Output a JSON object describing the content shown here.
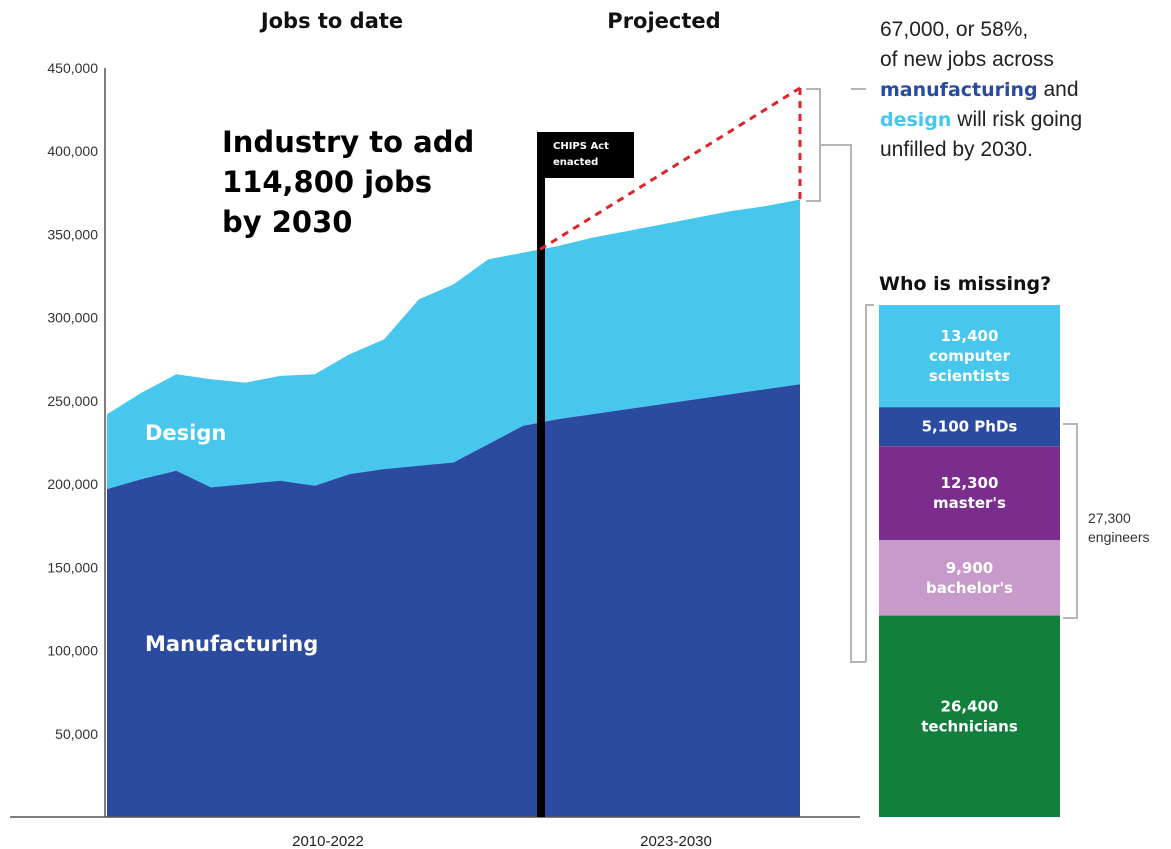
{
  "headers": {
    "left": "Jobs to date",
    "right": "Projected"
  },
  "headline": [
    "Industry to add",
    "114,800 jobs",
    "by 2030"
  ],
  "chips_label": [
    "CHIPS Act",
    "enacted"
  ],
  "periods": [
    "2010-2022",
    "2023-2030"
  ],
  "note": {
    "line1": "67,000, or 58%,",
    "line2": "of new jobs across",
    "line3_bold": "manufacturing",
    "line3_rest": " and",
    "line4_bold": "design",
    "line4_rest": " will risk going",
    "line5": "unfilled by 2030."
  },
  "who_title": "Who is missing?",
  "engineers_note": [
    "27,300",
    "engineers"
  ],
  "colors": {
    "manufacturing": "#2a4b9f",
    "design": "#47c7ee",
    "dashed": "#e0232b",
    "bracket": "#b5b5b5",
    "axis": "#555555"
  },
  "chart_data": {
    "type": "area",
    "stacked": true,
    "ylim": [
      0,
      450000
    ],
    "yticks": [
      "50,000",
      "100,000",
      "150,000",
      "200,000",
      "250,000",
      "300,000",
      "350,000",
      "400,000",
      "450,000"
    ],
    "ytick_values": [
      50000,
      100000,
      150000,
      200000,
      250000,
      300000,
      350000,
      400000,
      450000
    ],
    "x": [
      2010,
      2011,
      2012,
      2013,
      2014,
      2015,
      2016,
      2017,
      2018,
      2019,
      2020,
      2021,
      2022,
      2023,
      2024,
      2025,
      2026,
      2027,
      2028,
      2029,
      2030
    ],
    "series": [
      {
        "name": "Manufacturing",
        "color": "#2a4b9f",
        "values": [
          197000,
          203000,
          208000,
          198000,
          200000,
          202000,
          199000,
          206000,
          209000,
          211000,
          213000,
          224000,
          235000,
          239000,
          242000,
          245000,
          248000,
          251000,
          254000,
          257000,
          260000
        ]
      },
      {
        "name": "Design",
        "color": "#47c7ee",
        "values": [
          45000,
          52000,
          58000,
          65000,
          61000,
          63000,
          67000,
          72000,
          78000,
          100000,
          107000,
          111000,
          104000,
          104000,
          106000,
          107000,
          108000,
          109000,
          110000,
          110000,
          111000
        ]
      }
    ],
    "chips_act_year": 2022.5,
    "projected_target": 438000,
    "missing_breakdown": [
      {
        "value": "13,400",
        "label": "computer",
        "label2": "scientists",
        "count": 13400,
        "color": "#47c7ee"
      },
      {
        "value": "5,100 PhDs",
        "label": "",
        "label2": "",
        "count": 5100,
        "color": "#2a4b9f"
      },
      {
        "value": "12,300",
        "label": "master's",
        "label2": "",
        "count": 12300,
        "color": "#7b2d8e"
      },
      {
        "value": "9,900",
        "label": "bachelor's",
        "label2": "",
        "count": 9900,
        "color": "#c79ac9"
      },
      {
        "value": "26,400",
        "label": "technicians",
        "label2": "",
        "count": 26400,
        "color": "#137f3d"
      }
    ]
  }
}
